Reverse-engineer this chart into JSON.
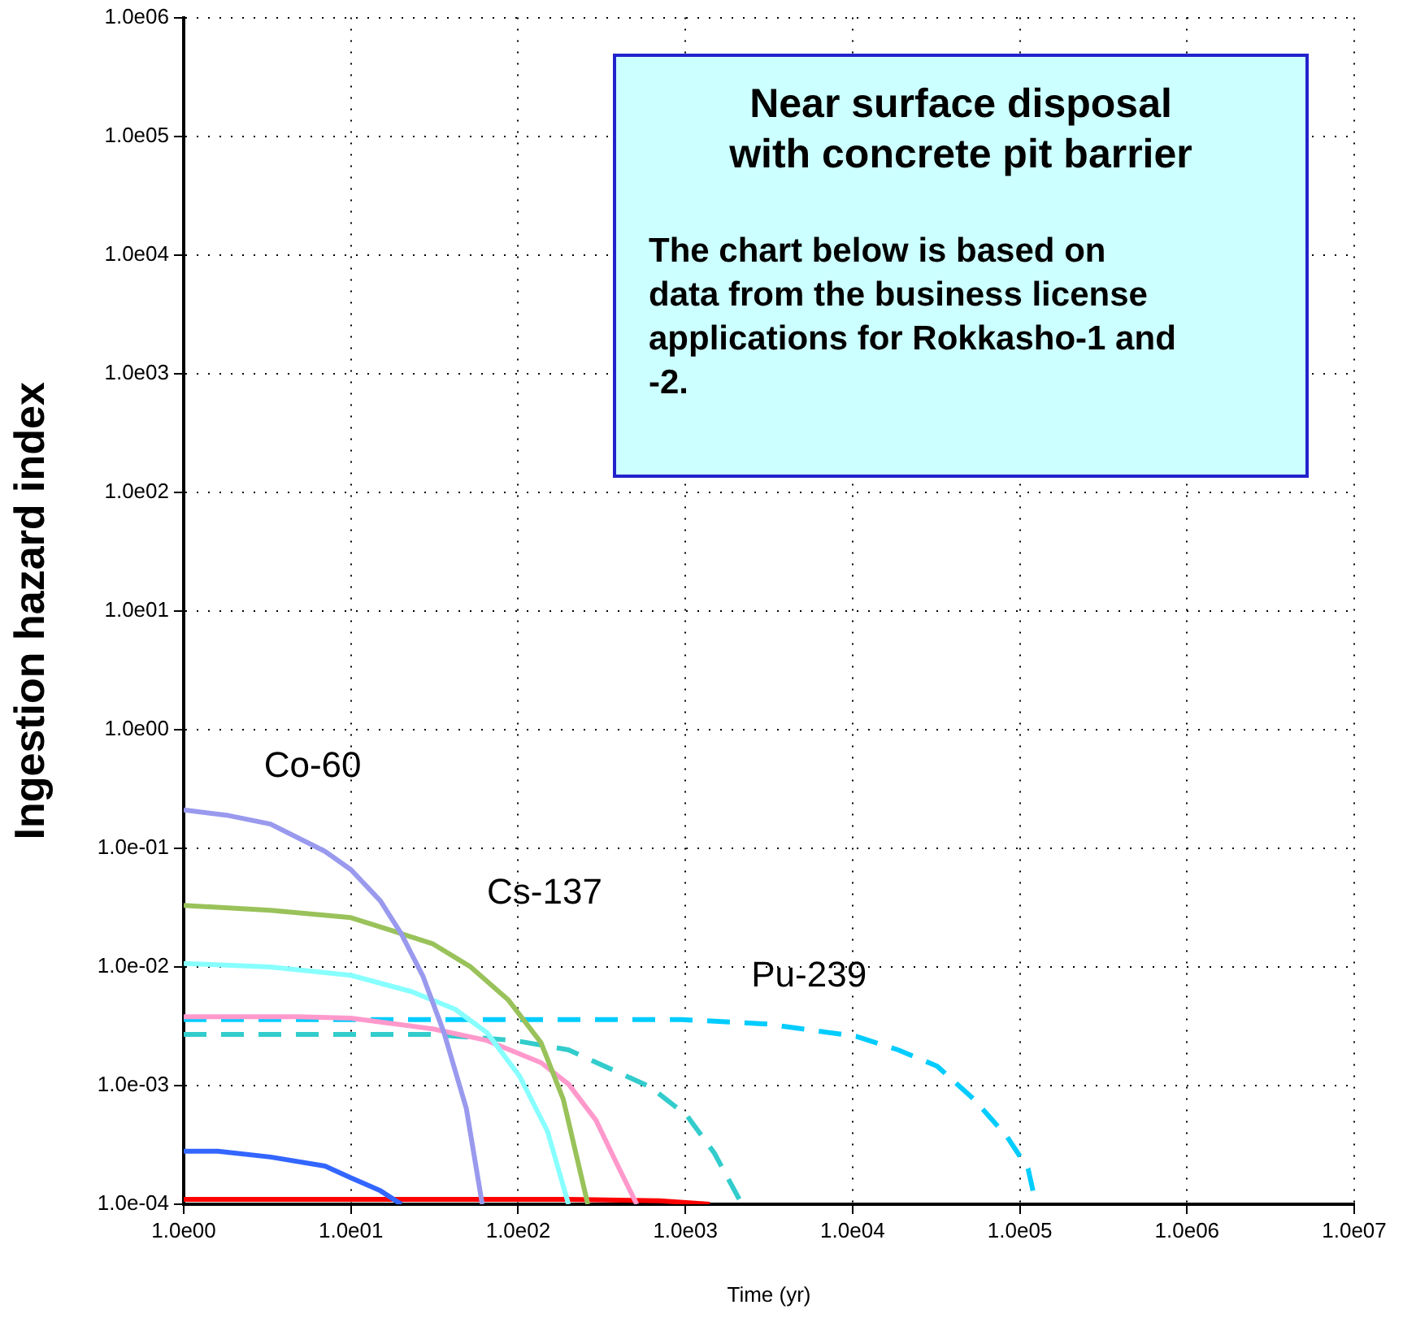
{
  "chart_data": {
    "type": "line",
    "title": "Near surface disposal with concrete pit barrier",
    "annotations": [
      "The chart below is based on data from the business license applications for Rokkasho-1 and -2."
    ],
    "xlabel": "Time (yr)",
    "ylabel": "Ingestion hazard index",
    "log": "xy",
    "grid": true,
    "legend": false,
    "marker": "none",
    "xlim": [
      1,
      10000000
    ],
    "ylim": [
      0.0001,
      1000000
    ],
    "xticks": [
      {
        "value": 1,
        "label": "1.0e00"
      },
      {
        "value": 10,
        "label": "1.0e01"
      },
      {
        "value": 100,
        "label": "1.0e02"
      },
      {
        "value": 1000,
        "label": "1.0e03"
      },
      {
        "value": 10000,
        "label": "1.0e04"
      },
      {
        "value": 100000,
        "label": "1.0e05"
      },
      {
        "value": 1000000,
        "label": "1.0e06"
      },
      {
        "value": 10000000,
        "label": "1.0e07"
      }
    ],
    "yticks": [
      {
        "value": 0.0001,
        "label": "1.0e-04"
      },
      {
        "value": 0.001,
        "label": "1.0e-03"
      },
      {
        "value": 0.01,
        "label": "1.0e-02"
      },
      {
        "value": 0.1,
        "label": "1.0e-01"
      },
      {
        "value": 1,
        "label": "1.0e00"
      },
      {
        "value": 10,
        "label": "1.0e01"
      },
      {
        "value": 100,
        "label": "1.0e02"
      },
      {
        "value": 1000,
        "label": "1.0e03"
      },
      {
        "value": 10000,
        "label": "1.0e04"
      },
      {
        "value": 100000,
        "label": "1.0e05"
      },
      {
        "value": 1000000,
        "label": "1.0e06"
      }
    ],
    "series": [
      {
        "name": "Co-60",
        "color": "#9999ee",
        "line_style": "solid",
        "x": [
          1,
          1.8,
          3.3,
          7,
          10,
          15,
          20,
          27,
          36,
          49,
          61
        ],
        "values": [
          0.21,
          0.19,
          0.16,
          0.094,
          0.066,
          0.036,
          0.019,
          0.0083,
          0.0028,
          0.00064,
          0.0001
        ]
      },
      {
        "name": "Cs-137",
        "color": "#99c25a",
        "line_style": "solid",
        "x": [
          1,
          3.3,
          10,
          18,
          31,
          52,
          87,
          137,
          186,
          261
        ],
        "values": [
          0.033,
          0.03,
          0.026,
          0.02,
          0.0156,
          0.01,
          0.0053,
          0.0023,
          0.00077,
          0.0001
        ]
      },
      {
        "color": "#88ffff",
        "line_style": "solid",
        "x": [
          1,
          3.3,
          10,
          23,
          42,
          65,
          102,
          150,
          200
        ],
        "values": [
          0.0107,
          0.01,
          0.0085,
          0.0062,
          0.0044,
          0.0028,
          0.0012,
          0.00041,
          0.0001
        ]
      },
      {
        "color": "#ff99cc",
        "line_style": "solid",
        "x": [
          1,
          4.8,
          10,
          31,
          65,
          137,
          200,
          292,
          389,
          512
        ],
        "values": [
          0.0038,
          0.0038,
          0.0037,
          0.003,
          0.0024,
          0.00156,
          0.00103,
          0.00051,
          0.00022,
          0.0001
        ]
      },
      {
        "color": "#3366ff",
        "line_style": "solid",
        "x": [
          1,
          1.6,
          3.3,
          7,
          10,
          15,
          20
        ],
        "values": [
          0.00028,
          0.00028,
          0.00025,
          0.00021,
          0.000167,
          0.00013,
          0.0001
        ]
      },
      {
        "color": "#ff0000",
        "line_style": "solid",
        "x": [
          1,
          200,
          700,
          1400
        ],
        "values": [
          0.00011,
          0.00011,
          0.000107,
          0.0001
        ]
      },
      {
        "name": "Pu-239",
        "color": "#00ccff",
        "line_style": "dashed",
        "x": [
          1,
          950,
          3100,
          10500,
          18700,
          32000,
          53000,
          84000,
          112000,
          125000
        ],
        "values": [
          0.0036,
          0.0036,
          0.0033,
          0.0026,
          0.002,
          0.00146,
          0.00077,
          0.00037,
          0.0002,
          0.0001
        ]
      },
      {
        "color": "#33cccc",
        "line_style": "dashed",
        "x": [
          1,
          30,
          95,
          200,
          620,
          1020,
          1490,
          2180
        ],
        "values": [
          0.0027,
          0.0027,
          0.0024,
          0.002,
          0.00097,
          0.00056,
          0.00027,
          0.0001
        ]
      }
    ]
  }
}
